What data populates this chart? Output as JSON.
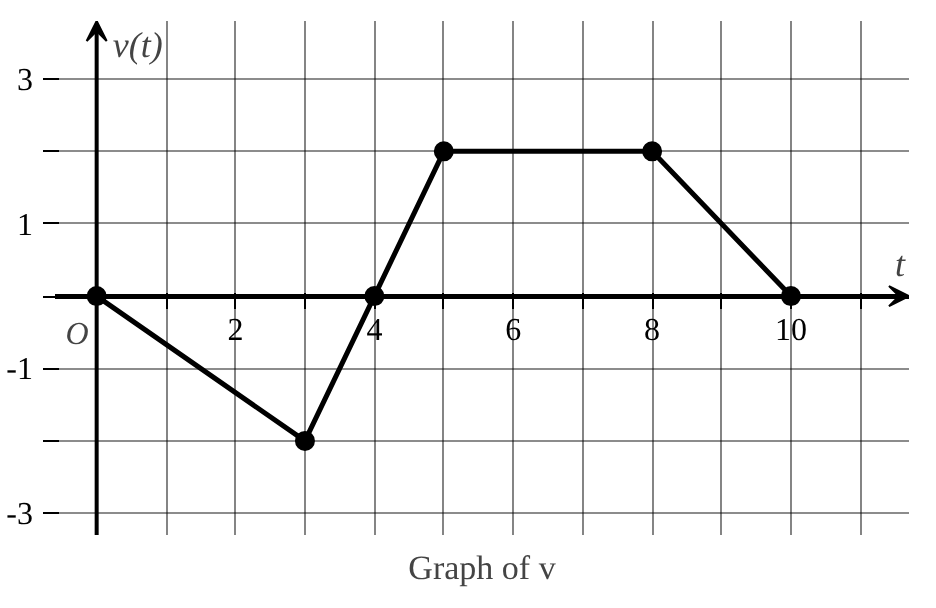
{
  "chart_data": {
    "type": "line",
    "title": "Graph of v",
    "xlabel": "t",
    "ylabel": "v(t)",
    "x": [
      0,
      3,
      4,
      5,
      8,
      10
    ],
    "series": [
      {
        "color": "#000000",
        "values": [
          0,
          -2,
          0,
          2,
          2,
          0
        ]
      }
    ],
    "marker": "circle",
    "line_style": "solid",
    "grid": true,
    "xlim": [
      -0.6,
      11.7
    ],
    "ylim": [
      -3.3,
      3.8
    ],
    "xticks": [
      {
        "value": 0,
        "label": "O"
      },
      {
        "value": 1,
        "label": null
      },
      2,
      {
        "value": 3,
        "label": null
      },
      4,
      {
        "value": 5,
        "label": null
      },
      6,
      {
        "value": 7,
        "label": null
      },
      8,
      {
        "value": 9,
        "label": null
      },
      10,
      {
        "value": 11,
        "label": null
      }
    ],
    "yticks": [
      -3,
      {
        "value": -2,
        "label": null
      },
      -1,
      {
        "value": 0,
        "label": null
      },
      1,
      {
        "value": 2,
        "label": null
      },
      3
    ]
  }
}
